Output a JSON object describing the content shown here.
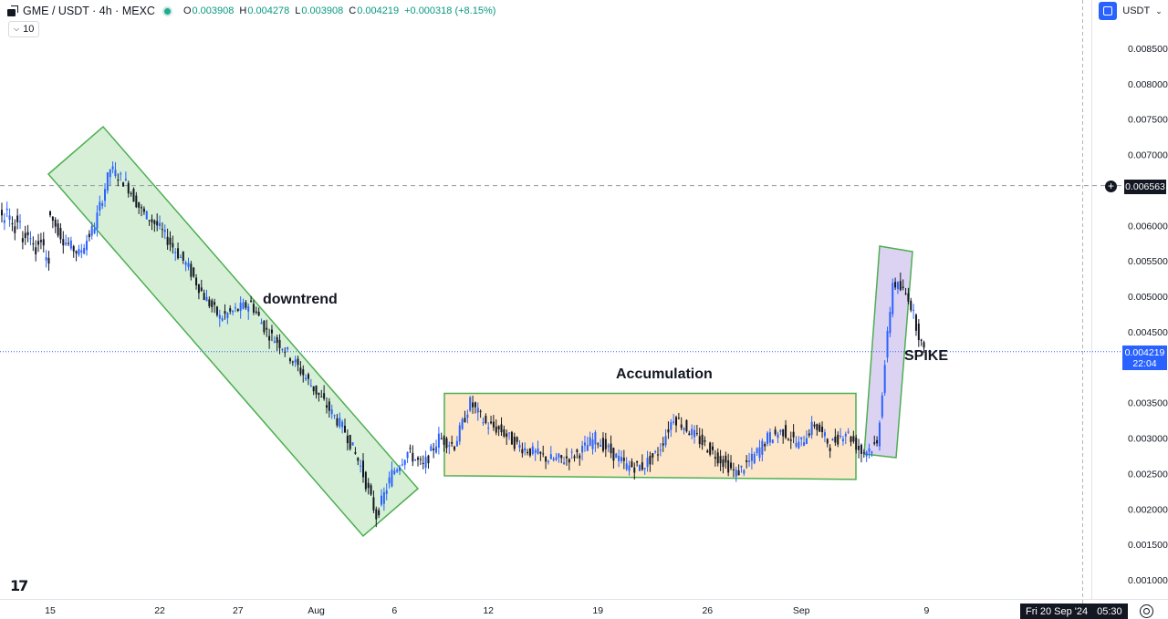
{
  "header": {
    "symbol": "GME / USDT · 4h · MEXC",
    "open_label": "O",
    "open": "0.003908",
    "high_label": "H",
    "high": "0.004278",
    "low_label": "L",
    "low": "0.003908",
    "close_label": "C",
    "close": "0.004219",
    "change": "+0.000318 (+8.15%)",
    "volume_indicator": "10"
  },
  "toolbar": {
    "currency": "USDT"
  },
  "price_axis": {
    "ticks": [
      "0.008500",
      "0.008000",
      "0.007500",
      "0.007000",
      "0.006000",
      "0.005500",
      "0.005000",
      "0.004500",
      "0.003500",
      "0.003000",
      "0.002500",
      "0.002000",
      "0.001500",
      "0.001000"
    ],
    "crosshair_price": "0.006563",
    "last_price": "0.004219",
    "countdown": "22:04"
  },
  "time_axis": {
    "ticks": [
      "15",
      "22",
      "27",
      "Aug",
      "6",
      "12",
      "19",
      "26",
      "Sep",
      "9"
    ],
    "cursor_label": "Fri 20 Sep '24",
    "cursor_time": "05:30"
  },
  "annotations": {
    "downtrend": "downtrend",
    "accumulation": "Accumulation",
    "spike": "SPIKE"
  },
  "colors": {
    "up": "#2962ff",
    "down": "#131722",
    "zone_border": "#4caf50",
    "downtrend_fill": "#d6efd6",
    "accumulation_fill": "#fde7c8",
    "spike_fill": "#dcd3f2",
    "live_dot": "#22ab94"
  },
  "chart_data": {
    "type": "candlestick",
    "symbol": "GME / USDT",
    "interval": "4h",
    "exchange": "MEXC",
    "y_axis": {
      "min": 0.001,
      "max": 0.0085,
      "position": "right"
    },
    "x_axis_labels": [
      "15",
      "22",
      "27",
      "Aug",
      "6",
      "12",
      "19",
      "26",
      "Sep",
      "9"
    ],
    "price_path": [
      {
        "t": "Jul 15",
        "p": 0.0062
      },
      {
        "t": "Jul 16",
        "p": 0.0058
      },
      {
        "t": "Jul 17",
        "p": 0.0056
      },
      {
        "t": "Jul 18",
        "p": 0.006
      },
      {
        "t": "Jul 19",
        "p": 0.0068
      },
      {
        "t": "Jul 20",
        "p": 0.0066
      },
      {
        "t": "Jul 21",
        "p": 0.0062
      },
      {
        "t": "Jul 22",
        "p": 0.006
      },
      {
        "t": "Jul 23",
        "p": 0.0057
      },
      {
        "t": "Jul 24",
        "p": 0.0054
      },
      {
        "t": "Jul 25",
        "p": 0.005
      },
      {
        "t": "Jul 26",
        "p": 0.0047
      },
      {
        "t": "Jul 27",
        "p": 0.0048
      },
      {
        "t": "Jul 28",
        "p": 0.0049
      },
      {
        "t": "Jul 29",
        "p": 0.0045
      },
      {
        "t": "Jul 30",
        "p": 0.0043
      },
      {
        "t": "Jul 31",
        "p": 0.004
      },
      {
        "t": "Aug 1",
        "p": 0.0037
      },
      {
        "t": "Aug 2",
        "p": 0.0034
      },
      {
        "t": "Aug 3",
        "p": 0.0031
      },
      {
        "t": "Aug 4",
        "p": 0.0026
      },
      {
        "t": "Aug 5",
        "p": 0.0019
      },
      {
        "t": "Aug 6",
        "p": 0.0025
      },
      {
        "t": "Aug 7",
        "p": 0.0028
      },
      {
        "t": "Aug 8",
        "p": 0.0026
      },
      {
        "t": "Aug 9",
        "p": 0.003
      },
      {
        "t": "Aug 10",
        "p": 0.0029
      },
      {
        "t": "Aug 11",
        "p": 0.0035
      },
      {
        "t": "Aug 12",
        "p": 0.0032
      },
      {
        "t": "Aug 13",
        "p": 0.0031
      },
      {
        "t": "Aug 14",
        "p": 0.0029
      },
      {
        "t": "Aug 15",
        "p": 0.0028
      },
      {
        "t": "Aug 16",
        "p": 0.0027
      },
      {
        "t": "Aug 17",
        "p": 0.0027
      },
      {
        "t": "Aug 18",
        "p": 0.0028
      },
      {
        "t": "Aug 19",
        "p": 0.003
      },
      {
        "t": "Aug 20",
        "p": 0.0028
      },
      {
        "t": "Aug 21",
        "p": 0.0026
      },
      {
        "t": "Aug 22",
        "p": 0.0026
      },
      {
        "t": "Aug 23",
        "p": 0.0028
      },
      {
        "t": "Aug 24",
        "p": 0.0033
      },
      {
        "t": "Aug 25",
        "p": 0.0031
      },
      {
        "t": "Aug 26",
        "p": 0.0029
      },
      {
        "t": "Aug 27",
        "p": 0.0027
      },
      {
        "t": "Aug 28",
        "p": 0.0025
      },
      {
        "t": "Aug 29",
        "p": 0.0027
      },
      {
        "t": "Aug 30",
        "p": 0.003
      },
      {
        "t": "Aug 31",
        "p": 0.0031
      },
      {
        "t": "Sep 1",
        "p": 0.0029
      },
      {
        "t": "Sep 2",
        "p": 0.0032
      },
      {
        "t": "Sep 3",
        "p": 0.0029
      },
      {
        "t": "Sep 4",
        "p": 0.0031
      },
      {
        "t": "Sep 5",
        "p": 0.0028
      },
      {
        "t": "Sep 6",
        "p": 0.0029
      },
      {
        "t": "Sep 7",
        "p": 0.0052
      },
      {
        "t": "Sep 8",
        "p": 0.005
      },
      {
        "t": "Sep 9",
        "p": 0.0042
      }
    ],
    "zones": [
      {
        "label": "downtrend",
        "from": "Jul 16",
        "to": "Aug 8",
        "top": [
          0.0067,
          0.0021
        ],
        "bottom": [
          0.0062,
          0.0016
        ]
      },
      {
        "label": "Accumulation",
        "from": "Aug 10",
        "to": "Sep 6",
        "top": 0.00363,
        "bottom": 0.00243
      },
      {
        "label": "SPIKE",
        "from": "Sep 6",
        "to": "Sep 9",
        "top": 0.0056,
        "bottom": 0.0027
      }
    ],
    "horizontal_lines": [
      {
        "kind": "crosshair",
        "price": 0.006563
      },
      {
        "kind": "last-price",
        "price": 0.004219
      }
    ]
  }
}
